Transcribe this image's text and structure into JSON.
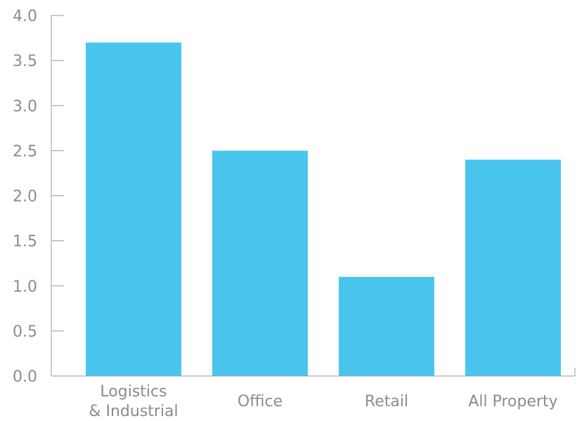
{
  "chart_data": {
    "type": "bar",
    "categories": [
      [
        "Logistics",
        "& Industrial"
      ],
      [
        "Office"
      ],
      [
        "Retail"
      ],
      [
        "All Property"
      ]
    ],
    "values": [
      3.7,
      2.5,
      1.1,
      2.4
    ],
    "ylim": [
      0,
      4
    ],
    "yticks": [
      "0.0",
      "0.5",
      "1.0",
      "1.5",
      "2.0",
      "2.5",
      "3.0",
      "3.5",
      "4.0"
    ],
    "grid": false,
    "legend": "none",
    "colors": {
      "bar": "#4AC6EE"
    }
  }
}
